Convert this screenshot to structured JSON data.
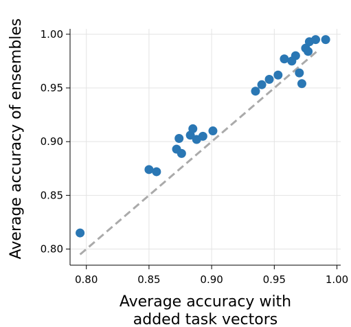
{
  "chart_data": {
    "type": "scatter",
    "title": "",
    "xlabel_lines": [
      "Average accuracy with",
      "added task vectors"
    ],
    "ylabel": "Average accuracy of ensembles",
    "xlim": [
      0.787,
      1.003
    ],
    "ylim": [
      0.785,
      1.005
    ],
    "xticks": [
      0.8,
      0.85,
      0.9,
      0.95,
      1.0
    ],
    "yticks": [
      0.8,
      0.85,
      0.9,
      0.95,
      1.0
    ],
    "xtick_labels": [
      "0.80",
      "0.85",
      "0.90",
      "0.95",
      "1.00"
    ],
    "ytick_labels": [
      "0.80",
      "0.85",
      "0.90",
      "0.95",
      "1.00"
    ],
    "grid": true,
    "reference_line": {
      "style": "dashed",
      "color": "#aaaaaa",
      "x": [
        0.795,
        0.985
      ],
      "y": [
        0.795,
        0.985
      ]
    },
    "point_color": "#2a77b4",
    "points": [
      {
        "x": 0.795,
        "y": 0.815
      },
      {
        "x": 0.85,
        "y": 0.874
      },
      {
        "x": 0.856,
        "y": 0.872
      },
      {
        "x": 0.872,
        "y": 0.893
      },
      {
        "x": 0.874,
        "y": 0.903
      },
      {
        "x": 0.876,
        "y": 0.889
      },
      {
        "x": 0.883,
        "y": 0.906
      },
      {
        "x": 0.885,
        "y": 0.912
      },
      {
        "x": 0.888,
        "y": 0.902
      },
      {
        "x": 0.893,
        "y": 0.905
      },
      {
        "x": 0.901,
        "y": 0.91
      },
      {
        "x": 0.935,
        "y": 0.947
      },
      {
        "x": 0.94,
        "y": 0.953
      },
      {
        "x": 0.946,
        "y": 0.958
      },
      {
        "x": 0.953,
        "y": 0.962
      },
      {
        "x": 0.958,
        "y": 0.977
      },
      {
        "x": 0.964,
        "y": 0.975
      },
      {
        "x": 0.967,
        "y": 0.98
      },
      {
        "x": 0.97,
        "y": 0.964
      },
      {
        "x": 0.972,
        "y": 0.954
      },
      {
        "x": 0.975,
        "y": 0.987
      },
      {
        "x": 0.977,
        "y": 0.984
      },
      {
        "x": 0.978,
        "y": 0.993
      },
      {
        "x": 0.983,
        "y": 0.995
      },
      {
        "x": 0.991,
        "y": 0.995
      }
    ]
  }
}
